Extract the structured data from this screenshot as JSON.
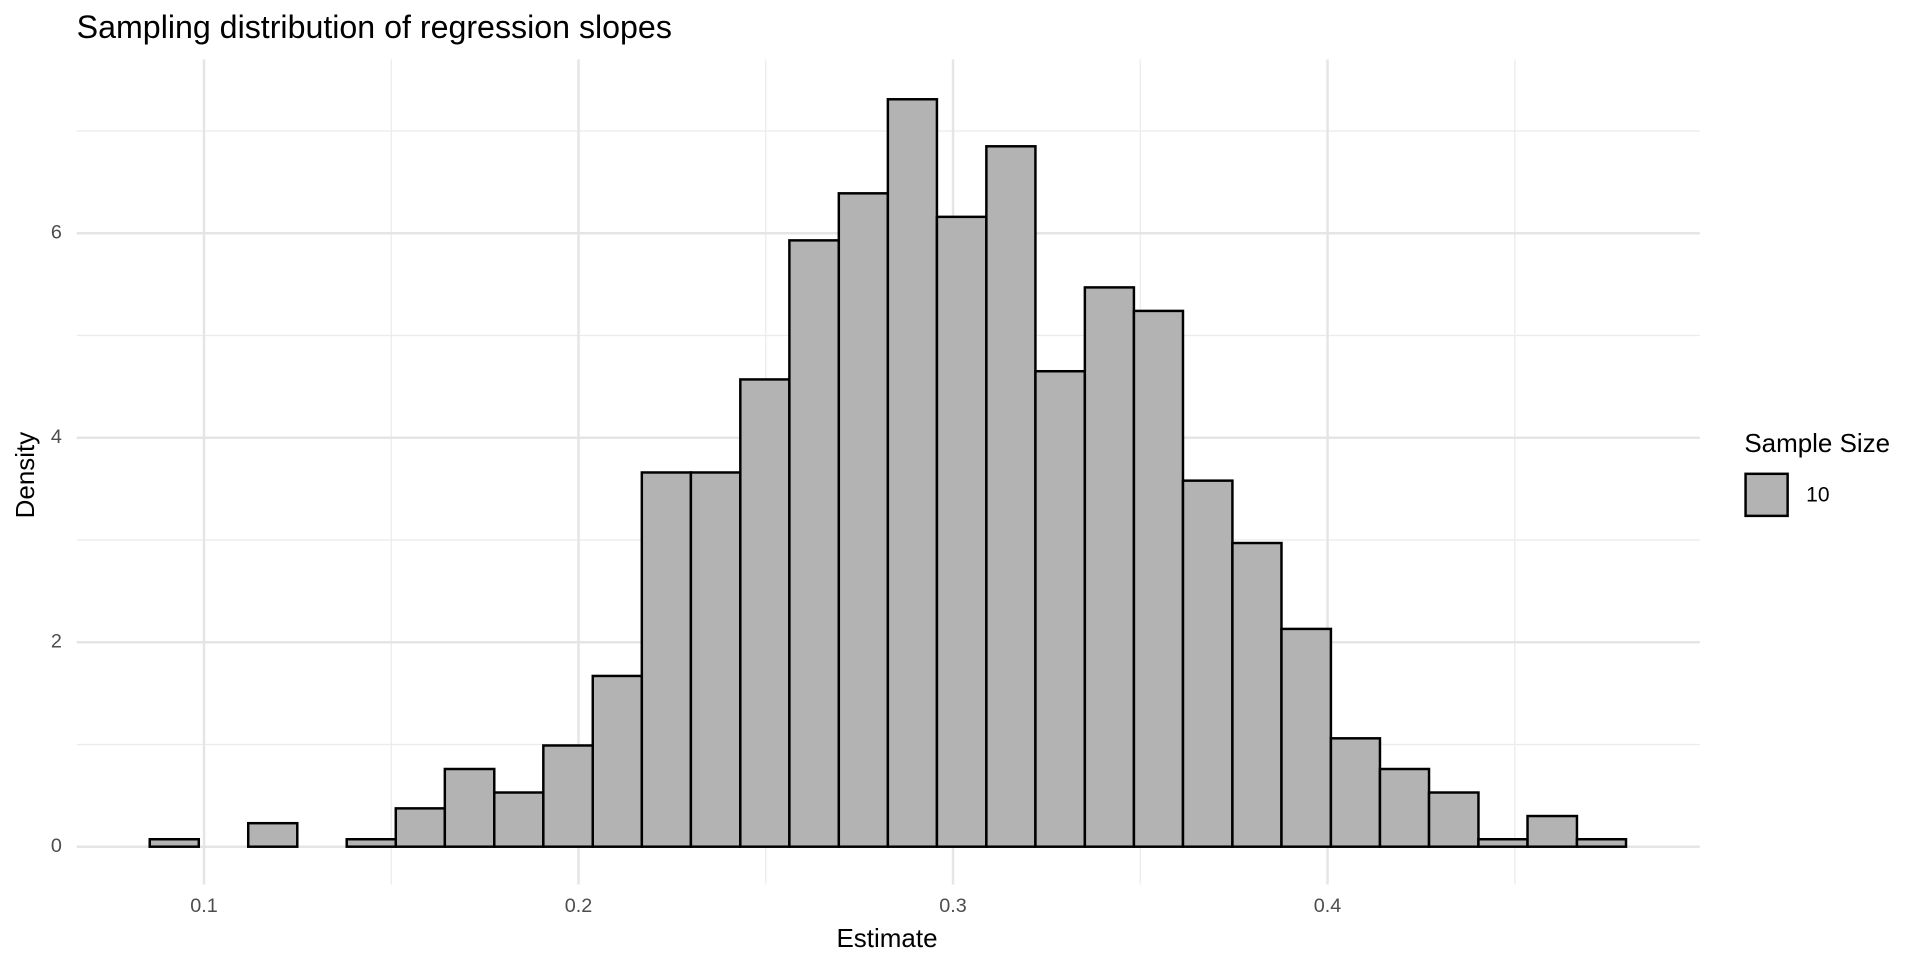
{
  "chart_data": {
    "type": "histogram",
    "title": "Sampling distribution of regression slopes",
    "x_label": "Estimate",
    "y_label": "Density",
    "legend_title": "Sample Size",
    "bins": [
      0.0855,
      0.0986,
      0.1118,
      0.1249,
      0.1381,
      0.1512,
      0.1643,
      0.1775,
      0.1906,
      0.2038,
      0.2169,
      0.23,
      0.2432,
      0.2563,
      0.2695,
      0.2826,
      0.2957,
      0.3089,
      0.322,
      0.3352,
      0.3483,
      0.3614,
      0.3746,
      0.3877,
      0.4009,
      0.414,
      0.4271,
      0.4403,
      0.4534,
      0.4666,
      0.4797
    ],
    "series": [
      {
        "name": "10",
        "color": "#b3b3b3",
        "values": [
          0.073,
          0,
          0.23,
          0,
          0.073,
          0.375,
          0.76,
          0.53,
          0.99,
          1.67,
          3.66,
          3.66,
          4.57,
          5.93,
          6.39,
          7.31,
          6.16,
          6.85,
          4.65,
          5.47,
          5.24,
          3.58,
          2.97,
          2.13,
          1.06,
          0.76,
          0.53,
          0.073,
          0.3,
          0.073
        ]
      }
    ],
    "xlim": [
      0.066,
      0.4994
    ],
    "ylim": [
      -0.37,
      7.7
    ],
    "xticks": [
      0.1,
      0.2,
      0.3,
      0.4
    ],
    "yticks": [
      0,
      2,
      4,
      6
    ],
    "x_minor_ticks": [
      0.15,
      0.25,
      0.35,
      0.45
    ],
    "y_minor_ticks": [
      1,
      3,
      5,
      7
    ],
    "grid": true,
    "legend": "right"
  }
}
